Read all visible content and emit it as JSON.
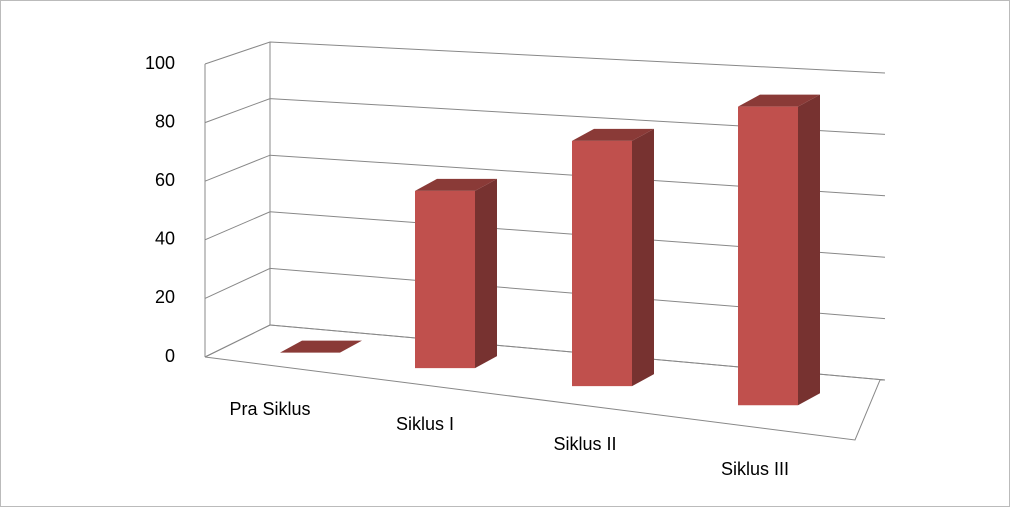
{
  "chart_data": {
    "type": "bar3d",
    "categories": [
      "Pra Siklus",
      "Siklus I",
      "Siklus II",
      "Siklus III"
    ],
    "values": [
      0,
      56,
      74,
      86
    ],
    "color": "#c0504d",
    "ylim": [
      0,
      100
    ],
    "yticks": [
      0,
      20,
      40,
      60,
      80,
      100
    ],
    "grid": true
  }
}
